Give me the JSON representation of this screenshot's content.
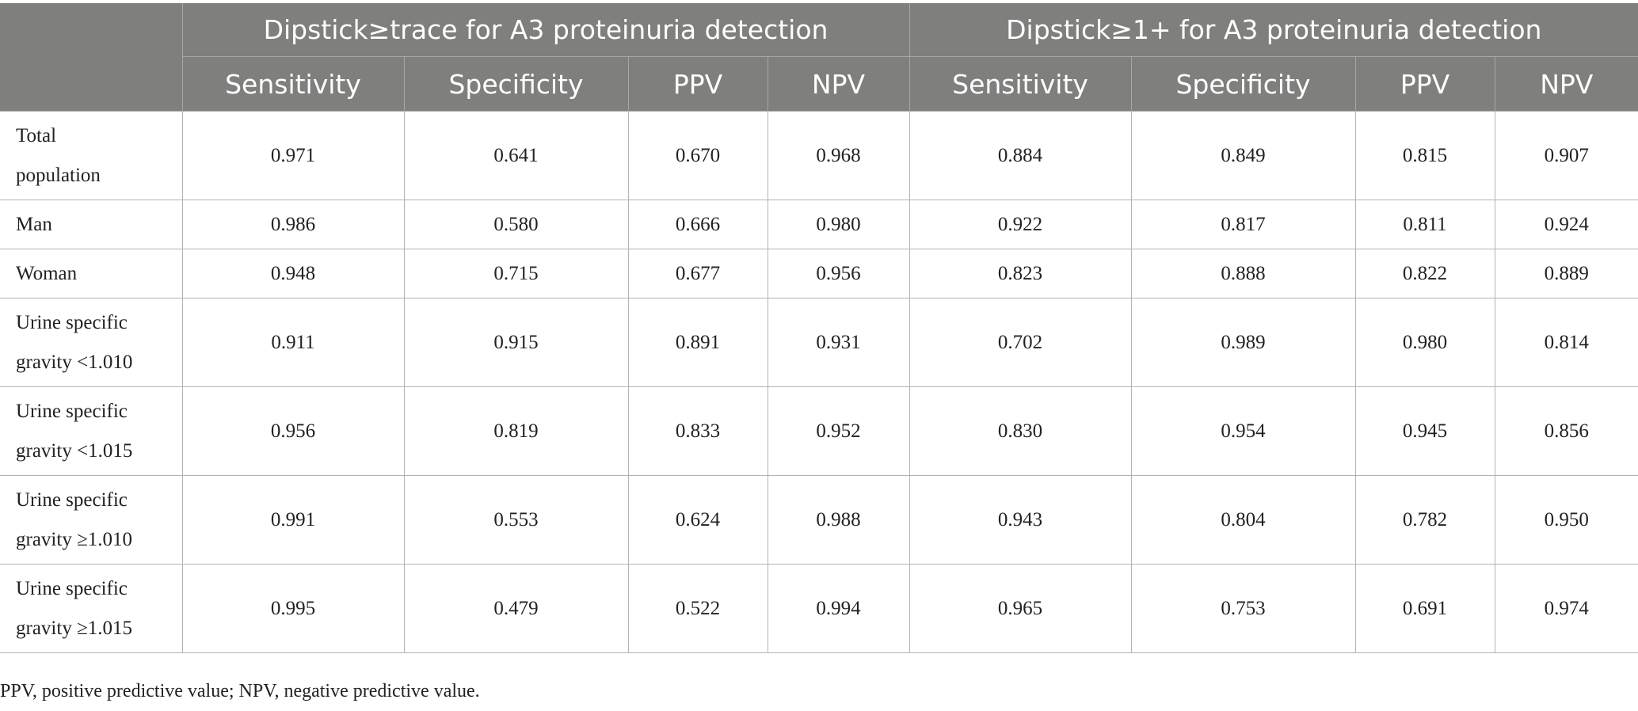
{
  "table": {
    "group_headers": [
      "Dipstick≥trace for A3 proteinuria detection",
      "Dipstick≥1+ for A3 proteinuria detection"
    ],
    "column_headers": [
      "Sensitivity",
      "Specificity",
      "PPV",
      "NPV",
      "Sensitivity",
      "Specificity",
      "PPV",
      "NPV"
    ],
    "rows": [
      {
        "label_lines": [
          "Total",
          "population"
        ],
        "values": [
          "0.971",
          "0.641",
          "0.670",
          "0.968",
          "0.884",
          "0.849",
          "0.815",
          "0.907"
        ]
      },
      {
        "label_lines": [
          "Man"
        ],
        "values": [
          "0.986",
          "0.580",
          "0.666",
          "0.980",
          "0.922",
          "0.817",
          "0.811",
          "0.924"
        ]
      },
      {
        "label_lines": [
          "Woman"
        ],
        "values": [
          "0.948",
          "0.715",
          "0.677",
          "0.956",
          "0.823",
          "0.888",
          "0.822",
          "0.889"
        ]
      },
      {
        "label_lines": [
          "Urine specific",
          "gravity <1.010"
        ],
        "values": [
          "0.911",
          "0.915",
          "0.891",
          "0.931",
          "0.702",
          "0.989",
          "0.980",
          "0.814"
        ]
      },
      {
        "label_lines": [
          "Urine specific",
          "gravity <1.015"
        ],
        "values": [
          "0.956",
          "0.819",
          "0.833",
          "0.952",
          "0.830",
          "0.954",
          "0.945",
          "0.856"
        ]
      },
      {
        "label_lines": [
          "Urine specific",
          "gravity ≥1.010"
        ],
        "values": [
          "0.991",
          "0.553",
          "0.624",
          "0.988",
          "0.943",
          "0.804",
          "0.782",
          "0.950"
        ]
      },
      {
        "label_lines": [
          "Urine specific",
          "gravity ≥1.015"
        ],
        "values": [
          "0.995",
          "0.479",
          "0.522",
          "0.994",
          "0.965",
          "0.753",
          "0.691",
          "0.974"
        ]
      }
    ]
  },
  "footnote": "PPV, positive predictive value; NPV, negative predictive value.",
  "colors": {
    "header_background": "#7f7f7e",
    "header_text": "#ffffff",
    "grid_line": "#b3b3b3"
  }
}
